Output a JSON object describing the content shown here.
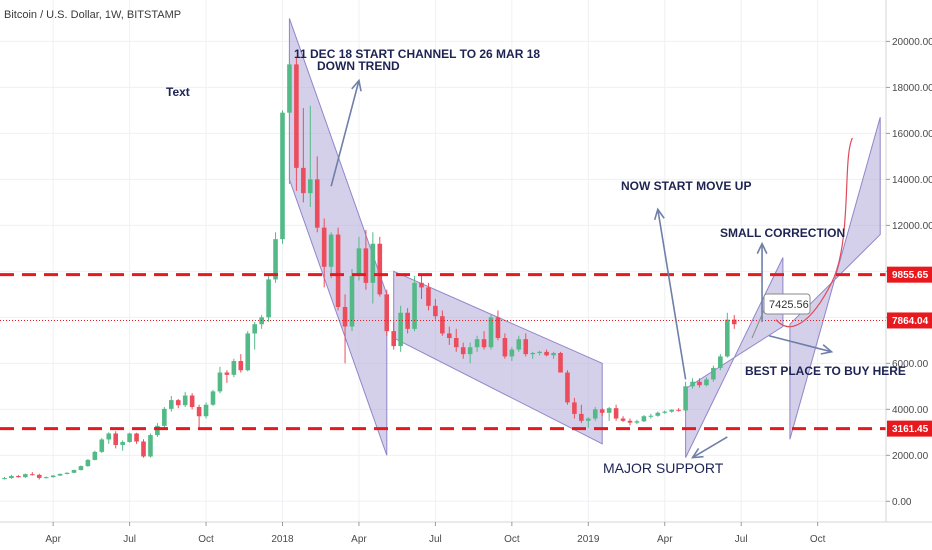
{
  "header": {
    "symbol_title": "Bitcoin / U.S. Dollar, 1W, BITSTAMP"
  },
  "colors": {
    "up": "#53b987",
    "down": "#eb4d5c",
    "channel_fill": "#b3a9d9",
    "channel_stroke": "#8f86c9",
    "arrow": "#6f7fa8",
    "dashed_line": "#e8191e",
    "price_line": "#e8191e",
    "resistance_badge": "#e8191e",
    "support_badge": "#e8191e",
    "current_badge": "#e8191e",
    "text": "#1d2352"
  },
  "chart_data": {
    "type": "candlestick",
    "title": "Bitcoin / U.S. Dollar, 1W, BITSTAMP",
    "xlabel": "",
    "ylabel": "",
    "ylim": [
      -900,
      21800
    ],
    "x_range_weeks": [
      0,
      116
    ],
    "y_ticks": [
      0,
      2000,
      4000,
      6000,
      8000,
      10000,
      12000,
      14000,
      16000,
      18000,
      20000
    ],
    "y_tick_labels": [
      "0.00",
      "2000.00",
      "4000.00",
      "6000.00",
      "8000.00",
      "10000.00",
      "12000.00",
      "14000.00",
      "16000.00",
      "18000.00",
      "20000.00"
    ],
    "x_ticks": [
      {
        "label": "Apr",
        "week": 7
      },
      {
        "label": "Jul",
        "week": 18
      },
      {
        "label": "Oct",
        "week": 29
      },
      {
        "label": "2018",
        "week": 40
      },
      {
        "label": "Apr",
        "week": 51
      },
      {
        "label": "Jul",
        "week": 62
      },
      {
        "label": "Oct",
        "week": 73
      },
      {
        "label": "2019",
        "week": 84
      },
      {
        "label": "Apr",
        "week": 95
      },
      {
        "label": "Jul",
        "week": 106
      },
      {
        "label": "Oct",
        "week": 117
      }
    ],
    "ohlc": [
      [
        1000,
        1060,
        950,
        1010
      ],
      [
        1010,
        1150,
        980,
        1100
      ],
      [
        1100,
        1140,
        1030,
        1050
      ],
      [
        1050,
        1210,
        1020,
        1180
      ],
      [
        1180,
        1270,
        1120,
        1150
      ],
      [
        1150,
        1200,
        950,
        1020
      ],
      [
        1020,
        1080,
        990,
        1050
      ],
      [
        1050,
        1140,
        1030,
        1120
      ],
      [
        1120,
        1210,
        1100,
        1190
      ],
      [
        1190,
        1260,
        1170,
        1240
      ],
      [
        1240,
        1380,
        1230,
        1360
      ],
      [
        1360,
        1560,
        1340,
        1530
      ],
      [
        1530,
        1840,
        1500,
        1800
      ],
      [
        1800,
        2200,
        1780,
        2150
      ],
      [
        2150,
        2750,
        2100,
        2690
      ],
      [
        2690,
        3000,
        2500,
        2950
      ],
      [
        2950,
        3050,
        2300,
        2450
      ],
      [
        2450,
        2650,
        2200,
        2580
      ],
      [
        2580,
        2980,
        2550,
        2950
      ],
      [
        2950,
        2980,
        2500,
        2600
      ],
      [
        2600,
        2700,
        1900,
        1950
      ],
      [
        1950,
        2950,
        1900,
        2880
      ],
      [
        2880,
        3400,
        2800,
        3280
      ],
      [
        3280,
        4100,
        3200,
        4020
      ],
      [
        4020,
        4580,
        3900,
        4400
      ],
      [
        4400,
        4450,
        4050,
        4180
      ],
      [
        4180,
        4750,
        4100,
        4600
      ],
      [
        4600,
        4700,
        4000,
        4100
      ],
      [
        4100,
        4200,
        3100,
        3700
      ],
      [
        3700,
        4300,
        3600,
        4200
      ],
      [
        4200,
        4850,
        4150,
        4780
      ],
      [
        4780,
        5850,
        4700,
        5600
      ],
      [
        5600,
        5700,
        5150,
        5500
      ],
      [
        5500,
        6200,
        5400,
        6100
      ],
      [
        6100,
        6400,
        5600,
        5700
      ],
      [
        5700,
        7400,
        5650,
        7300
      ],
      [
        7300,
        7800,
        6600,
        7700
      ],
      [
        7700,
        8100,
        7500,
        8000
      ],
      [
        8000,
        9800,
        7800,
        9650
      ],
      [
        9650,
        11700,
        9500,
        11400
      ],
      [
        11400,
        17000,
        11200,
        16900
      ],
      [
        16900,
        19600,
        13800,
        19000
      ],
      [
        19000,
        19300,
        13500,
        14500
      ],
      [
        14500,
        17100,
        13000,
        13400
      ],
      [
        13400,
        17200,
        12800,
        14000
      ],
      [
        14000,
        15000,
        11700,
        11900
      ],
      [
        11900,
        12300,
        9300,
        10200
      ],
      [
        10200,
        11700,
        9700,
        11600
      ],
      [
        11600,
        11900,
        8300,
        8450
      ],
      [
        8450,
        9000,
        6000,
        7600
      ],
      [
        7600,
        10100,
        7400,
        9800
      ],
      [
        9800,
        11500,
        9600,
        11000
      ],
      [
        11000,
        11800,
        9200,
        9500
      ],
      [
        9500,
        11700,
        8600,
        11200
      ],
      [
        11200,
        11500,
        8900,
        9000
      ],
      [
        9000,
        9200,
        7200,
        7400
      ],
      [
        7400,
        7800,
        6600,
        6750
      ],
      [
        6750,
        8500,
        6500,
        8200
      ],
      [
        8200,
        8400,
        7300,
        7500
      ],
      [
        7500,
        9800,
        7400,
        9500
      ],
      [
        9500,
        9900,
        8800,
        9300
      ],
      [
        9300,
        9500,
        8300,
        8500
      ],
      [
        8500,
        8800,
        7900,
        8050
      ],
      [
        8050,
        8300,
        7200,
        7300
      ],
      [
        7300,
        7600,
        6800,
        7100
      ],
      [
        7100,
        7500,
        6500,
        6700
      ],
      [
        6700,
        6900,
        6200,
        6400
      ],
      [
        6400,
        6900,
        6000,
        6700
      ],
      [
        6700,
        7200,
        6500,
        7050
      ],
      [
        7050,
        7400,
        6600,
        6700
      ],
      [
        6700,
        8100,
        6600,
        8000
      ],
      [
        8000,
        8300,
        7000,
        7100
      ],
      [
        7100,
        7300,
        6200,
        6300
      ],
      [
        6300,
        6700,
        6100,
        6600
      ],
      [
        6600,
        7200,
        6500,
        7050
      ],
      [
        7050,
        7300,
        6300,
        6400
      ],
      [
        6400,
        6500,
        6200,
        6450
      ],
      [
        6450,
        6550,
        6350,
        6500
      ],
      [
        6500,
        6600,
        6300,
        6350
      ],
      [
        6350,
        6500,
        6200,
        6450
      ],
      [
        6450,
        6500,
        5800,
        5600
      ],
      [
        5600,
        5700,
        4200,
        4300
      ],
      [
        4300,
        4500,
        3600,
        3800
      ],
      [
        3800,
        4200,
        3400,
        3500
      ],
      [
        3500,
        3650,
        3200,
        3600
      ],
      [
        3600,
        4100,
        3500,
        4000
      ],
      [
        4000,
        4050,
        3700,
        3850
      ],
      [
        3850,
        4100,
        3500,
        4050
      ],
      [
        4050,
        4200,
        3500,
        3600
      ],
      [
        3600,
        3700,
        3450,
        3500
      ],
      [
        3500,
        3600,
        3300,
        3420
      ],
      [
        3420,
        3550,
        3350,
        3480
      ],
      [
        3480,
        3750,
        3450,
        3700
      ],
      [
        3700,
        3800,
        3600,
        3720
      ],
      [
        3720,
        3900,
        3680,
        3850
      ],
      [
        3850,
        3950,
        3800,
        3900
      ],
      [
        3900,
        4000,
        3850,
        3980
      ],
      [
        3980,
        4050,
        3900,
        3950
      ],
      [
        3950,
        5200,
        3900,
        5000
      ],
      [
        5000,
        5350,
        4900,
        5200
      ],
      [
        5200,
        5350,
        4950,
        5050
      ],
      [
        5050,
        5400,
        5000,
        5300
      ],
      [
        5300,
        5900,
        5200,
        5800
      ],
      [
        5800,
        6400,
        5700,
        6300
      ],
      [
        6300,
        8200,
        6250,
        7900
      ],
      [
        7900,
        8100,
        7500,
        7700
      ]
    ],
    "horizontal_levels": [
      {
        "value": 9855.65,
        "label": "9855.65"
      },
      {
        "value": 3161.45,
        "label": "3161.45"
      }
    ],
    "current_price": {
      "value": 7864.04,
      "label": "7864.04"
    },
    "callout_price": {
      "value": 7425.56,
      "label": "7425.56"
    },
    "channels": [
      {
        "name": "down-channel-1",
        "points": [
          [
            41,
            21000
          ],
          [
            55,
            9000
          ],
          [
            55,
            2000
          ],
          [
            41,
            14000
          ]
        ]
      },
      {
        "name": "down-channel-2",
        "points": [
          [
            56,
            10000
          ],
          [
            86,
            6000
          ],
          [
            86,
            2500
          ],
          [
            56,
            7100
          ]
        ]
      },
      {
        "name": "up-channel-1",
        "points": [
          [
            98,
            1900
          ],
          [
            112,
            10600
          ],
          [
            112,
            7600
          ],
          [
            98,
            4900
          ]
        ]
      },
      {
        "name": "up-channel-2",
        "points": [
          [
            113,
            2700
          ],
          [
            126,
            16700
          ],
          [
            126,
            11600
          ],
          [
            113,
            7700
          ]
        ]
      }
    ],
    "arrows": [
      {
        "name": "down-trend-arrow",
        "from": [
          47,
          13700
        ],
        "to": [
          51,
          18300
        ]
      },
      {
        "name": "move-up-arrow",
        "from": [
          98,
          5300
        ],
        "to": [
          94,
          12700
        ]
      },
      {
        "name": "small-correction-arrow",
        "from": [
          109,
          7800
        ],
        "to": [
          109,
          11200
        ]
      },
      {
        "name": "best-place-arrow",
        "from": [
          110,
          7200
        ],
        "to": [
          119,
          6500
        ]
      },
      {
        "name": "major-support-arrow",
        "from": [
          104,
          2800
        ],
        "to": [
          99,
          1900
        ]
      }
    ],
    "curve": [
      [
        111,
        7900
      ],
      [
        113,
        7200
      ],
      [
        116,
        7700
      ],
      [
        119,
        9500
      ],
      [
        122,
        15800
      ]
    ],
    "annotations": [
      {
        "name": "channel-dates-annotation",
        "text": "11 DEC 18 START CHANNEL TO 26 MAR 18"
      },
      {
        "name": "down-trend-annotation",
        "text": "DOWN TREND"
      },
      {
        "name": "text-annotation",
        "text": "Text"
      },
      {
        "name": "now-start-move-up-annotation",
        "text": "NOW START MOVE UP"
      },
      {
        "name": "small-correction-annotation",
        "text": "SMALL CORRECTION"
      },
      {
        "name": "best-place-annotation",
        "text": "BEST PLACE TO BUY HERE"
      },
      {
        "name": "major-support-annotation",
        "text": "MAJOR SUPPORT"
      }
    ]
  }
}
